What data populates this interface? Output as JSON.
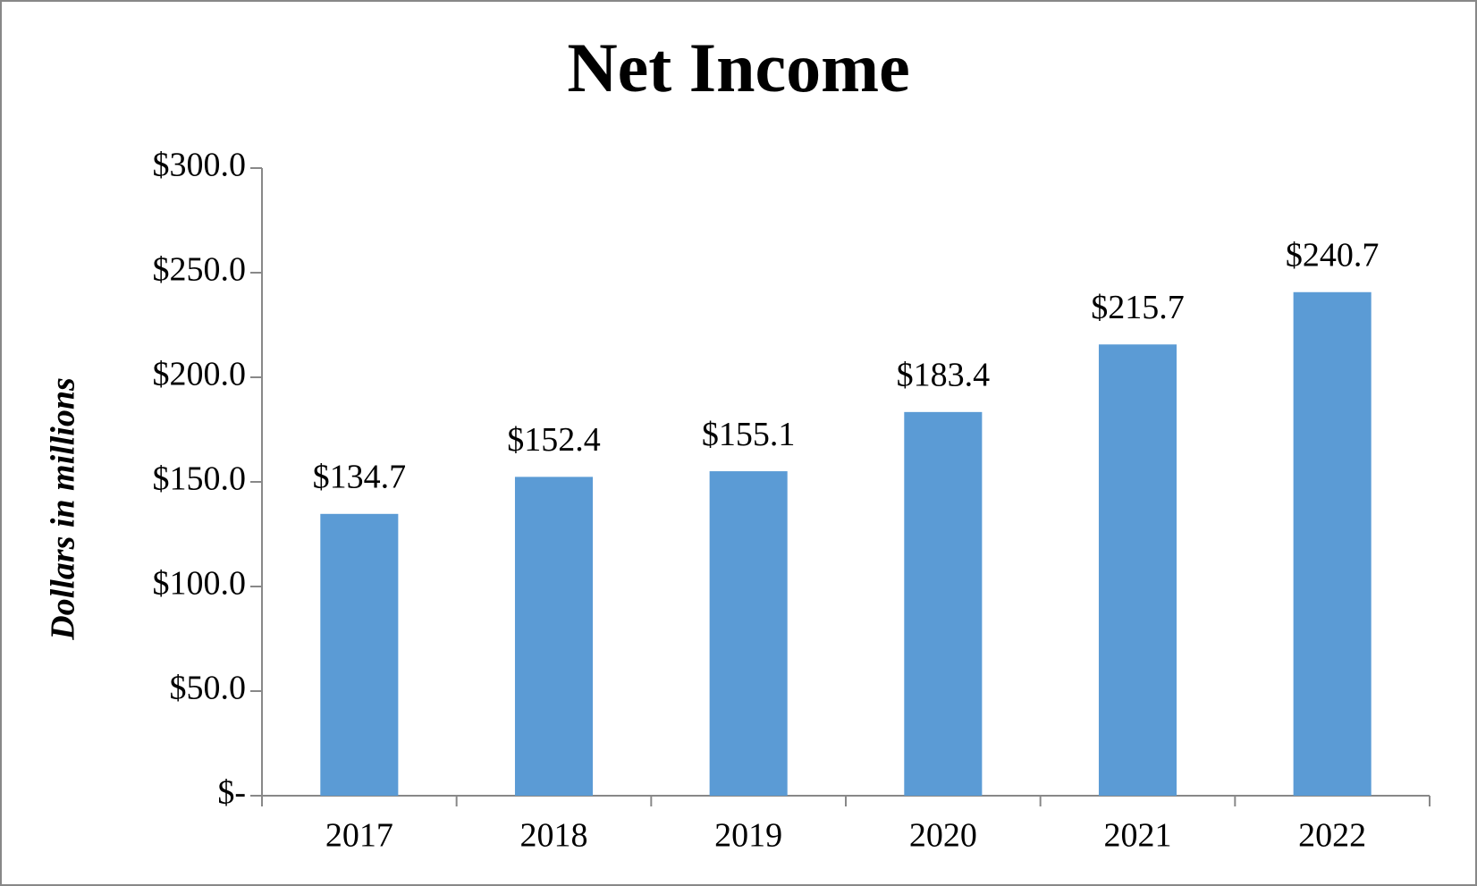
{
  "chart_data": {
    "type": "bar",
    "title": "Net Income",
    "y_label": "Dollars in millions",
    "categories": [
      "2017",
      "2018",
      "2019",
      "2020",
      "2021",
      "2022"
    ],
    "values": [
      134.7,
      152.4,
      155.1,
      183.4,
      215.7,
      240.7
    ],
    "value_labels": [
      "$134.7",
      "$152.4",
      "$155.1",
      "$183.4",
      "$215.7",
      "$240.7"
    ],
    "color": "#5b9bd5",
    "ylim": [
      0,
      300
    ],
    "yticks": [
      {
        "value": 0,
        "label": "$-"
      },
      {
        "value": 50,
        "label": "$50.0"
      },
      {
        "value": 100,
        "label": "$100.0"
      },
      {
        "value": 150,
        "label": "$150.0"
      },
      {
        "value": 200,
        "label": "$200.0"
      },
      {
        "value": 250,
        "label": "$250.0"
      },
      {
        "value": 300,
        "label": "$300.0"
      }
    ],
    "grid": false
  }
}
